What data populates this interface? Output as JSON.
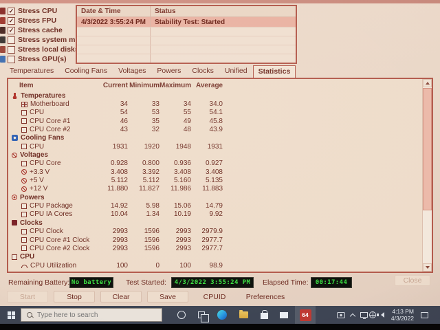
{
  "window": {
    "stress_options": [
      {
        "label": "Stress CPU",
        "checked": true,
        "icon": "cpu-icon",
        "icon_color": "#8a2f2a"
      },
      {
        "label": "Stress FPU",
        "checked": true,
        "icon": "fpu-icon",
        "icon_color": "#a03b30"
      },
      {
        "label": "Stress cache",
        "checked": true,
        "icon": "cache-icon",
        "icon_color": "#4a2a24"
      },
      {
        "label": "Stress system memory",
        "checked": false,
        "icon": "memory-icon",
        "icon_color": "#3c3734"
      },
      {
        "label": "Stress local disks",
        "checked": false,
        "icon": "disk-icon",
        "icon_color": "#9c4538"
      },
      {
        "label": "Stress GPU(s)",
        "checked": false,
        "icon": "gpu-icon",
        "icon_color": "#3f6fb0"
      }
    ],
    "log": {
      "columns": [
        "Date & Time",
        "Status"
      ],
      "rows": [
        [
          "4/3/2022 3:55:24 PM",
          "Stability Test: Started"
        ]
      ],
      "empty_row_count": 4
    },
    "tabs": {
      "items": [
        "Temperatures",
        "Cooling Fans",
        "Voltages",
        "Powers",
        "Clocks",
        "Unified",
        "Statistics"
      ],
      "active": "Statistics"
    },
    "stats": {
      "columns": [
        "Item",
        "Current",
        "Minimum",
        "Maximum",
        "Average"
      ],
      "sections": [
        {
          "name": "Temperatures",
          "icon": "thermometer-icon",
          "rows": [
            {
              "item": "Motherboard",
              "icon": "motherboard-icon",
              "values": [
                "34",
                "33",
                "34",
                "34.0"
              ]
            },
            {
              "item": "CPU",
              "icon": "chip-icon",
              "values": [
                "54",
                "53",
                "55",
                "54.1"
              ]
            },
            {
              "item": "CPU Core #1",
              "icon": "chip-icon",
              "values": [
                "46",
                "35",
                "49",
                "45.8"
              ]
            },
            {
              "item": "CPU Core #2",
              "icon": "chip-icon",
              "values": [
                "43",
                "32",
                "48",
                "43.9"
              ]
            }
          ]
        },
        {
          "name": "Cooling Fans",
          "icon": "fan-icon",
          "rows": [
            {
              "item": "CPU",
              "icon": "chip-icon",
              "values": [
                "1931",
                "1920",
                "1948",
                "1931"
              ]
            }
          ]
        },
        {
          "name": "Voltages",
          "icon": "voltage-icon",
          "rows": [
            {
              "item": "CPU Core",
              "icon": "chip-icon",
              "values": [
                "0.928",
                "0.800",
                "0.936",
                "0.927"
              ]
            },
            {
              "item": "+3.3 V",
              "icon": "voltage-icon",
              "values": [
                "3.408",
                "3.392",
                "3.408",
                "3.408"
              ]
            },
            {
              "item": "+5 V",
              "icon": "voltage-icon",
              "values": [
                "5.112",
                "5.112",
                "5.160",
                "5.135"
              ]
            },
            {
              "item": "+12 V",
              "icon": "voltage-icon",
              "values": [
                "11.880",
                "11.827",
                "11.986",
                "11.883"
              ]
            }
          ]
        },
        {
          "name": "Powers",
          "icon": "power-icon",
          "rows": [
            {
              "item": "CPU Package",
              "icon": "chip-icon",
              "values": [
                "14.92",
                "5.98",
                "15.06",
                "14.79"
              ]
            },
            {
              "item": "CPU IA Cores",
              "icon": "chip-icon",
              "values": [
                "10.04",
                "1.34",
                "10.19",
                "9.92"
              ]
            }
          ]
        },
        {
          "name": "Clocks",
          "icon": "clock-icon",
          "rows": [
            {
              "item": "CPU Clock",
              "icon": "chip-icon",
              "values": [
                "2993",
                "1596",
                "2993",
                "2979.9"
              ]
            },
            {
              "item": "CPU Core #1 Clock",
              "icon": "chip-icon",
              "values": [
                "2993",
                "1596",
                "2993",
                "2977.7"
              ]
            },
            {
              "item": "CPU Core #2 Clock",
              "icon": "chip-icon",
              "values": [
                "2993",
                "1596",
                "2993",
                "2977.7"
              ]
            }
          ]
        },
        {
          "name": "CPU",
          "icon": "chip-icon",
          "rows": [
            {
              "item": "CPU Utilization",
              "icon": "gauge-icon",
              "values": [
                "100",
                "0",
                "100",
                "98.9"
              ]
            }
          ]
        }
      ]
    },
    "status_bar": {
      "battery_label": "Remaining Battery:",
      "battery_value": "No battery",
      "test_started_label": "Test Started:",
      "test_started_value": "4/3/2022 3:55:24 PM",
      "elapsed_label": "Elapsed Time:",
      "elapsed_value": "00:17:44"
    },
    "buttons": {
      "start": "Start",
      "stop": "Stop",
      "clear": "Clear",
      "save": "Save",
      "cpuid": "CPUID",
      "preferences": "Preferences",
      "close": "Close"
    }
  },
  "taskbar": {
    "search_placeholder": "Type here to search",
    "aida_badge": "64",
    "clock_time": "4:13 PM",
    "clock_date": "4/3/2022",
    "pinned_icons": [
      "windows-logo",
      "cortana",
      "task-view",
      "edge",
      "file-explorer",
      "store",
      "mail",
      "aida64"
    ],
    "tray_icons": [
      "capture",
      "chevron-up",
      "pc",
      "network",
      "speaker",
      "clock",
      "notifications"
    ]
  },
  "colors": {
    "window_bg": "#ead7c7",
    "accent_border": "#b35a4c",
    "highlight_row": "#e9b2a2",
    "text": "#6d2b21",
    "lcd_green": "#3ce242",
    "lcd_bg": "#0c100b",
    "taskbar_bg": "#3e4554",
    "aida_red": "#bf3a33"
  }
}
